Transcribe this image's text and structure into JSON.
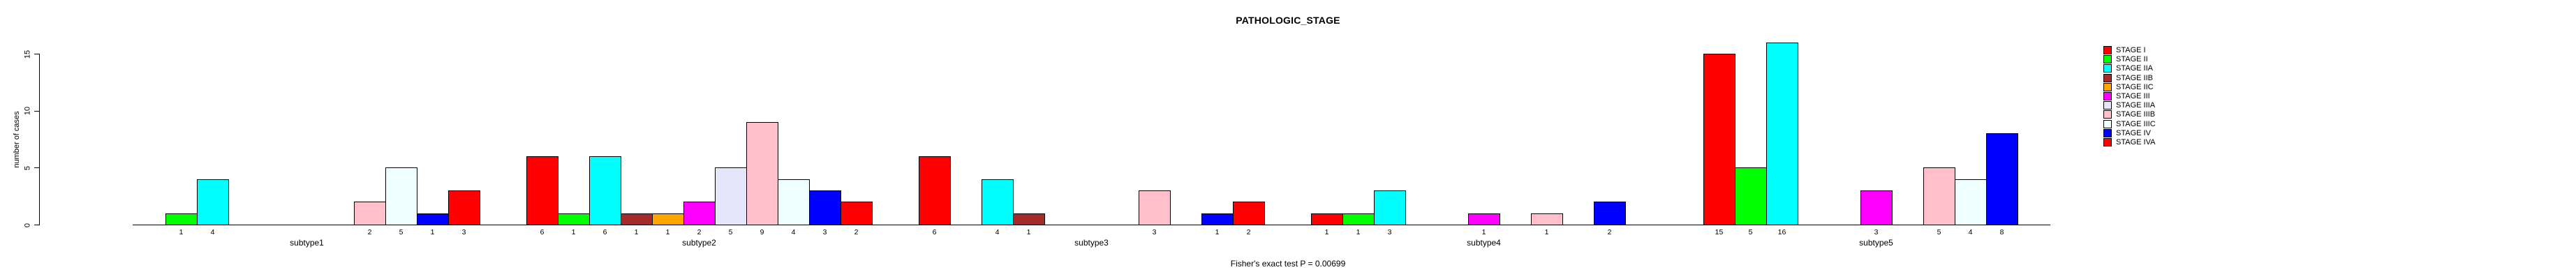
{
  "title": "PATHOLOGIC_STAGE",
  "footer": "Fisher's exact test P = 0.00699",
  "chart_data": {
    "type": "bar",
    "title": "PATHOLOGIC_STAGE",
    "ylabel": "number of cases",
    "annotation": "Fisher's exact test P = 0.00699",
    "yticks": [
      0,
      5,
      10,
      15
    ],
    "ylim": [
      0,
      16
    ],
    "grid": false,
    "legend_position": "top-right",
    "bar_value_labels": true,
    "categories": [
      "subtype1",
      "subtype2",
      "subtype3",
      "subtype4",
      "subtype5"
    ],
    "series": [
      {
        "name": "STAGE I",
        "color": "#FF0000",
        "values": [
          0,
          6,
          6,
          1,
          15
        ]
      },
      {
        "name": "STAGE II",
        "color": "#00FF00",
        "values": [
          1,
          1,
          0,
          1,
          5
        ]
      },
      {
        "name": "STAGE IIA",
        "color": "#00FFFF",
        "values": [
          4,
          6,
          4,
          3,
          16
        ]
      },
      {
        "name": "STAGE IIB",
        "color": "#A52A2A",
        "values": [
          0,
          1,
          1,
          0,
          0
        ]
      },
      {
        "name": "STAGE IIC",
        "color": "#FFA500",
        "values": [
          0,
          1,
          0,
          0,
          0
        ]
      },
      {
        "name": "STAGE III",
        "color": "#FF00FF",
        "values": [
          0,
          2,
          0,
          1,
          3
        ]
      },
      {
        "name": "STAGE IIIA",
        "color": "#E6E6FA",
        "values": [
          0,
          5,
          0,
          0,
          0
        ]
      },
      {
        "name": "STAGE IIIB",
        "color": "#FFC0CB",
        "values": [
          2,
          9,
          3,
          1,
          5
        ]
      },
      {
        "name": "STAGE IIIC",
        "color": "#F0FFFF",
        "values": [
          5,
          4,
          0,
          0,
          4
        ]
      },
      {
        "name": "STAGE IV",
        "color": "#0000FF",
        "values": [
          1,
          3,
          1,
          2,
          8
        ]
      },
      {
        "name": "STAGE IVA",
        "color": "#FF0000",
        "values": [
          3,
          2,
          2,
          0,
          0
        ]
      }
    ]
  }
}
